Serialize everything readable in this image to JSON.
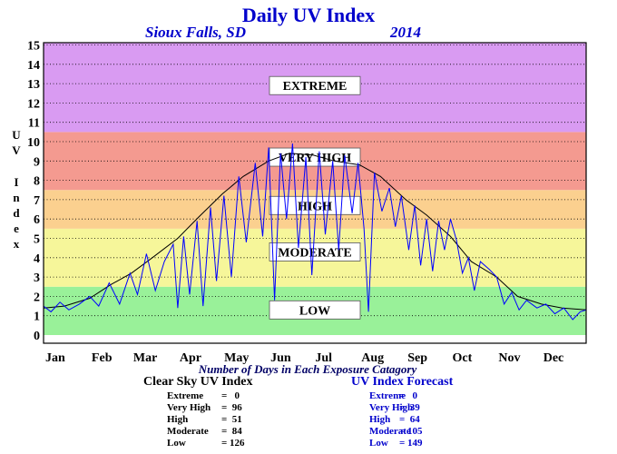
{
  "header": {
    "title": "Daily UV Index",
    "location": "Sioux Falls, SD",
    "year": "2014"
  },
  "chart_data": {
    "type": "line",
    "title": "Daily UV Index",
    "ylabel": "UV Index",
    "xlabel": "Number of Days in Each Exposure Catagory",
    "ylim": [
      0,
      15
    ],
    "yticks": [
      "0",
      "1",
      "2",
      "3",
      "4",
      "5",
      "6",
      "7",
      "8",
      "9",
      "10",
      "11",
      "12",
      "13",
      "14",
      "15"
    ],
    "months": [
      "Jan",
      "Feb",
      "Mar",
      "Apr",
      "May",
      "Jun",
      "Jul",
      "Aug",
      "Sep",
      "Oct",
      "Nov",
      "Dec"
    ],
    "grid": true,
    "bands": [
      {
        "label": "LOW",
        "from": 0,
        "to": 2.5,
        "color": "#99f199",
        "label_value": 1.3
      },
      {
        "label": "MODERATE",
        "from": 2.5,
        "to": 5.5,
        "color": "#f6f69a",
        "label_value": 4.3
      },
      {
        "label": "HIGH",
        "from": 5.5,
        "to": 7.5,
        "color": "#fbd08f",
        "label_value": 6.7
      },
      {
        "label": "VERY HIGH",
        "from": 7.5,
        "to": 10.5,
        "color": "#f49a90",
        "label_value": 9.2
      },
      {
        "label": "EXTREME",
        "from": 10.5,
        "to": 15.5,
        "color": "#d99bf2",
        "label_value": 12.9
      }
    ],
    "series": [
      {
        "name": "Clear Sky UV Index",
        "color": "#000000",
        "points": [
          [
            1,
            1.4
          ],
          [
            15,
            1.5
          ],
          [
            32,
            1.9
          ],
          [
            46,
            2.6
          ],
          [
            60,
            3.2
          ],
          [
            74,
            4.0
          ],
          [
            91,
            5.0
          ],
          [
            105,
            6.1
          ],
          [
            121,
            7.3
          ],
          [
            135,
            8.2
          ],
          [
            152,
            9.0
          ],
          [
            166,
            9.4
          ],
          [
            182,
            9.3
          ],
          [
            196,
            9.0
          ],
          [
            213,
            8.8
          ],
          [
            227,
            8.2
          ],
          [
            244,
            7.0
          ],
          [
            258,
            6.2
          ],
          [
            274,
            5.1
          ],
          [
            288,
            3.8
          ],
          [
            305,
            3.0
          ],
          [
            319,
            2.0
          ],
          [
            335,
            1.6
          ],
          [
            349,
            1.4
          ],
          [
            365,
            1.3
          ]
        ]
      },
      {
        "name": "UV Index Forecast",
        "color": "#0000ff",
        "points": [
          [
            1,
            1.5
          ],
          [
            6,
            1.2
          ],
          [
            12,
            1.7
          ],
          [
            18,
            1.3
          ],
          [
            25,
            1.6
          ],
          [
            32,
            2.0
          ],
          [
            38,
            1.5
          ],
          [
            45,
            2.7
          ],
          [
            52,
            1.6
          ],
          [
            59,
            3.2
          ],
          [
            64,
            2.1
          ],
          [
            70,
            4.2
          ],
          [
            76,
            2.3
          ],
          [
            82,
            3.8
          ],
          [
            88,
            4.7
          ],
          [
            91,
            1.4
          ],
          [
            95,
            5.1
          ],
          [
            99,
            2.1
          ],
          [
            104,
            5.9
          ],
          [
            108,
            1.5
          ],
          [
            113,
            6.6
          ],
          [
            117,
            2.8
          ],
          [
            122,
            7.2
          ],
          [
            127,
            3.0
          ],
          [
            132,
            8.2
          ],
          [
            137,
            4.8
          ],
          [
            143,
            8.9
          ],
          [
            148,
            5.1
          ],
          [
            152,
            9.7
          ],
          [
            156,
            1.8
          ],
          [
            160,
            9.4
          ],
          [
            164,
            6.0
          ],
          [
            168,
            9.9
          ],
          [
            172,
            4.5
          ],
          [
            177,
            9.2
          ],
          [
            181,
            3.1
          ],
          [
            186,
            9.5
          ],
          [
            190,
            5.2
          ],
          [
            195,
            9.0
          ],
          [
            199,
            4.4
          ],
          [
            203,
            9.3
          ],
          [
            208,
            6.3
          ],
          [
            212,
            8.9
          ],
          [
            216,
            5.5
          ],
          [
            219,
            1.2
          ],
          [
            223,
            8.4
          ],
          [
            228,
            6.4
          ],
          [
            233,
            7.6
          ],
          [
            237,
            5.6
          ],
          [
            241,
            7.2
          ],
          [
            246,
            4.4
          ],
          [
            250,
            6.7
          ],
          [
            254,
            3.6
          ],
          [
            258,
            6.0
          ],
          [
            262,
            3.3
          ],
          [
            266,
            5.9
          ],
          [
            270,
            4.4
          ],
          [
            274,
            6.0
          ],
          [
            278,
            4.9
          ],
          [
            282,
            3.2
          ],
          [
            286,
            4.0
          ],
          [
            290,
            2.3
          ],
          [
            294,
            3.8
          ],
          [
            300,
            3.4
          ],
          [
            305,
            3.0
          ],
          [
            310,
            1.6
          ],
          [
            315,
            2.2
          ],
          [
            320,
            1.3
          ],
          [
            325,
            1.8
          ],
          [
            332,
            1.4
          ],
          [
            338,
            1.6
          ],
          [
            344,
            1.1
          ],
          [
            350,
            1.4
          ],
          [
            356,
            0.8
          ],
          [
            361,
            1.2
          ],
          [
            365,
            1.3
          ]
        ]
      }
    ],
    "tables": [
      {
        "title": "Clear Sky UV Index",
        "color": "#000000",
        "rows": [
          {
            "label": "Extreme",
            "value": "0"
          },
          {
            "label": "Very High",
            "value": "96"
          },
          {
            "label": "High",
            "value": "51"
          },
          {
            "label": "Moderate",
            "value": "84"
          },
          {
            "label": "Low",
            "value": "126"
          }
        ]
      },
      {
        "title": "UV Index Forecast",
        "color": "#0000cc",
        "rows": [
          {
            "label": "Extreme",
            "value": "0"
          },
          {
            "label": "Very High",
            "value": "39"
          },
          {
            "label": "High",
            "value": "64"
          },
          {
            "label": "Moderate",
            "value": "105"
          },
          {
            "label": "Low",
            "value": "149"
          }
        ]
      }
    ]
  }
}
